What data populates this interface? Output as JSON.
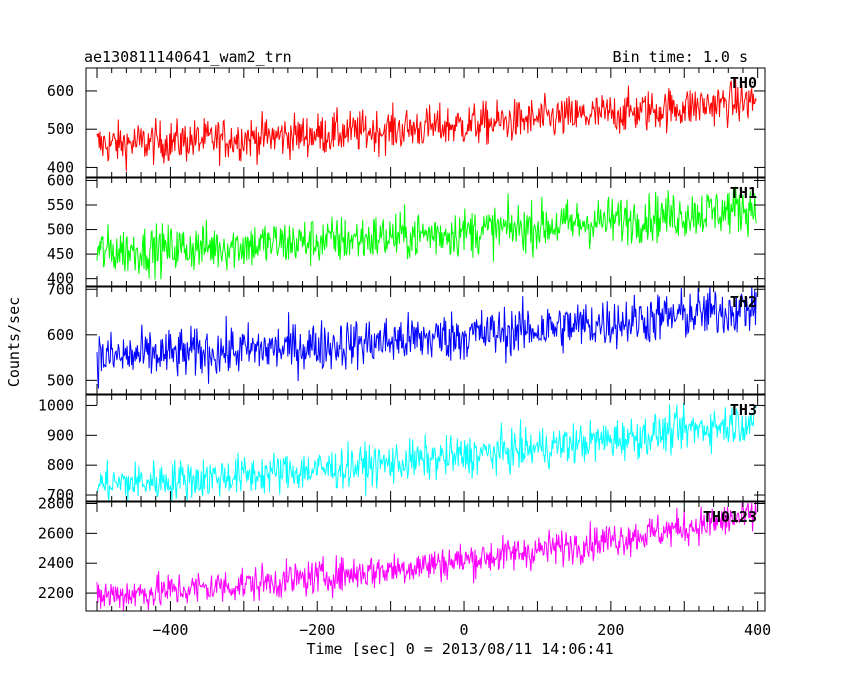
{
  "header": {
    "title": "ae130811140641_wam2_trn",
    "bin_time": "Bin time: 1.0 s"
  },
  "chart_data": {
    "type": "line",
    "title": "ae130811140641_wam2_trn",
    "xlabel": "Time [sec] 0 = 2013/08/11 14:06:41",
    "ylabel": "Counts/sec",
    "xlim": [
      -515,
      410
    ],
    "x_ticks": [
      -400,
      -200,
      0,
      200,
      400
    ],
    "x_tick_labels": [
      "−400",
      "−200",
      "0",
      "200",
      "400"
    ],
    "x_start": -500,
    "x_end": 398,
    "bin": 1.0,
    "grid": false,
    "series": [
      {
        "name": "TH0",
        "color": "#ff0000",
        "ylim": [
          375,
          660
        ],
        "y_ticks": [
          400,
          500,
          600
        ],
        "trend_start": 460,
        "trend_end": 575,
        "noise": 28
      },
      {
        "name": "TH1",
        "color": "#00ff00",
        "ylim": [
          385,
          605
        ],
        "y_ticks": [
          400,
          450,
          500,
          550,
          600
        ],
        "trend_start": 455,
        "trend_end": 545,
        "noise": 25
      },
      {
        "name": "TH2",
        "color": "#0000ff",
        "ylim": [
          470,
          705
        ],
        "y_ticks": [
          500,
          600,
          700
        ],
        "trend_start": 550,
        "trend_end": 660,
        "noise": 28
      },
      {
        "name": "TH3",
        "color": "#00ffff",
        "ylim": [
          680,
          1035
        ],
        "y_ticks": [
          700,
          800,
          900,
          1000
        ],
        "trend_start": 735,
        "trend_end": 950,
        "noise": 35
      },
      {
        "name": "TH0123",
        "color": "#ff00ff",
        "ylim": [
          2080,
          2810
        ],
        "y_ticks": [
          2200,
          2400,
          2600,
          2800
        ],
        "trend_start": 2180,
        "trend_end": 2720,
        "noise": 60
      }
    ]
  }
}
